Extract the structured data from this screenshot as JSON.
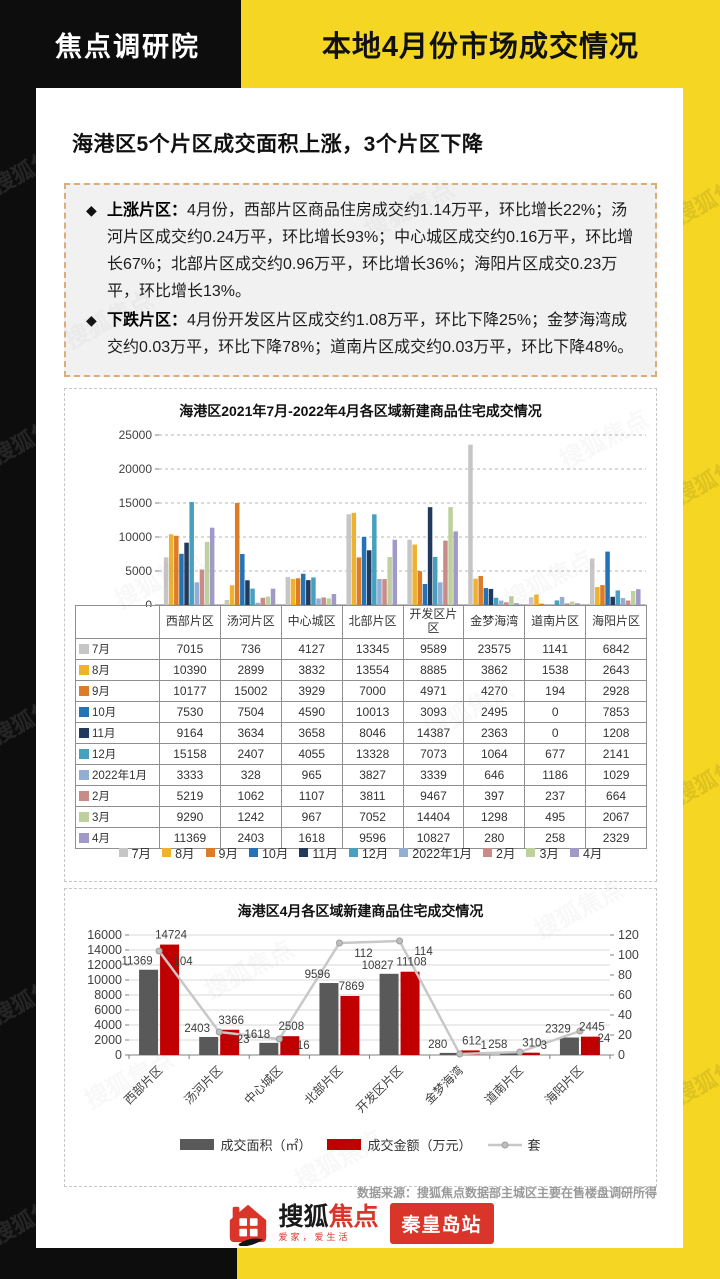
{
  "page": {
    "brand": "焦点调研院",
    "banner_title": "本地4月份市场成交情况",
    "headline": "海港区5个片区成交面积上涨，3个片区下降",
    "bullet_marker": "◆",
    "bullets": [
      {
        "label": "上涨片区：",
        "text": "4月份，西部片区商品住房成交约1.14万平，环比增长22%；汤河片区成交约0.24万平，环比增长93%；中心城区成交约0.16万平，环比增长67%；北部片区成交约0.96万平，环比增长36%；海阳片区成交0.23万平，环比增长13%。"
      },
      {
        "label": "下跌片区：",
        "text": "4月份开发区片区成交约1.08万平，环比下降25%；金梦海湾成交约0.03万平，环比下降78%；道南片区成交约0.03万平，环比下降48%。"
      }
    ],
    "source_note": "数据来源：搜狐焦点数据部主城区主要在售楼盘调研所得",
    "footer": {
      "logo_main": "搜狐",
      "logo_accent": "焦点",
      "logo_tagline": "爱家，爱生活",
      "station_badge": "秦皇岛站"
    },
    "watermark": "搜狐焦点",
    "colors": {
      "yellow": "#f5d623",
      "black": "#0d0d0d",
      "logo_red": "#d9352b",
      "bar_gray": "#595959",
      "bar_red": "#c00000"
    }
  },
  "chart_data": [
    {
      "type": "bar",
      "title": "海港区2021年7月-2022年4月各区域新建商品住宅成交情况",
      "categories": [
        "西部片区",
        "汤河片区",
        "中心城区",
        "北部片区",
        "开发区片区",
        "金梦海湾",
        "道南片区",
        "海阳片区"
      ],
      "ylabel": "",
      "xlabel": "",
      "ylim": [
        0,
        25000
      ],
      "ytick_step": 5000,
      "grid": true,
      "legend_position": "bottom",
      "show_data_table": true,
      "series": [
        {
          "name": "7月",
          "color": "#c6c6c6",
          "values": [
            7015,
            736,
            4127,
            13345,
            9589,
            23575,
            1141,
            6842
          ]
        },
        {
          "name": "8月",
          "color": "#eeb22f",
          "values": [
            10390,
            2899,
            3832,
            13554,
            8885,
            3862,
            1538,
            2643
          ]
        },
        {
          "name": "9月",
          "color": "#dc7b28",
          "values": [
            10177,
            15002,
            3929,
            7000,
            4971,
            4270,
            194,
            2928
          ]
        },
        {
          "name": "10月",
          "color": "#2473b6",
          "values": [
            7530,
            7504,
            4590,
            10013,
            3093,
            2495,
            0,
            7853
          ]
        },
        {
          "name": "11月",
          "color": "#20395c",
          "values": [
            9164,
            3634,
            3658,
            8046,
            14387,
            2363,
            0,
            1208
          ]
        },
        {
          "name": "12月",
          "color": "#47a0bf",
          "values": [
            15158,
            2407,
            4055,
            13328,
            7073,
            1064,
            677,
            2141
          ]
        },
        {
          "name": "2022年1月",
          "color": "#93aed3",
          "values": [
            3333,
            328,
            965,
            3827,
            3339,
            646,
            1186,
            1029
          ]
        },
        {
          "name": "2月",
          "color": "#c98b88",
          "values": [
            5219,
            1062,
            1107,
            3811,
            9467,
            397,
            237,
            664
          ]
        },
        {
          "name": "3月",
          "color": "#bdd09d",
          "values": [
            9290,
            1242,
            967,
            7052,
            14404,
            1298,
            495,
            2067
          ]
        },
        {
          "name": "4月",
          "color": "#a09ac8",
          "values": [
            11369,
            2403,
            1618,
            9596,
            10827,
            280,
            258,
            2329
          ]
        }
      ]
    },
    {
      "type": "bar+line",
      "title": "海港区4月各区域新建商品住宅成交情况",
      "categories": [
        "西部片区",
        "汤河片区",
        "中心城区",
        "北部片区",
        "开发区片区",
        "金梦海湾",
        "道南片区",
        "海阳片区"
      ],
      "ylim_left": [
        0,
        16000
      ],
      "ytick_step_left": 2000,
      "ylim_right": [
        0,
        120
      ],
      "ytick_step_right": 20,
      "grid": true,
      "legend_position": "bottom",
      "series": [
        {
          "name": "成交面积（㎡）",
          "kind": "bar",
          "axis": "left",
          "color": "#595959",
          "values": [
            11369,
            2403,
            1618,
            9596,
            10827,
            280,
            258,
            2329
          ]
        },
        {
          "name": "成交金额（万元）",
          "kind": "bar",
          "axis": "left",
          "color": "#c00000",
          "values": [
            14724,
            3366,
            2508,
            7869,
            11108,
            612,
            310,
            2445
          ]
        },
        {
          "name": "套",
          "kind": "line",
          "axis": "right",
          "color": "#c8c8c8",
          "values": [
            104,
            23,
            16,
            112,
            114,
            1,
            3,
            24
          ]
        }
      ]
    }
  ]
}
